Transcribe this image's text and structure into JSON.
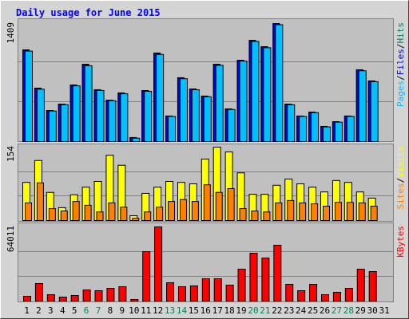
{
  "chart_data": [
    {
      "type": "bar",
      "title": "Daily usage for June 2015",
      "ylim": [
        0,
        1409
      ],
      "yticks": [
        1409
      ],
      "legend_separator": "/",
      "series": [
        {
          "name": "Hits",
          "color": "#00805c",
          "values": [
            1095,
            638,
            371,
            447,
            676,
            923,
            619,
            495,
            581,
            48,
            609,
            1057,
            305,
            762,
            628,
            543,
            923,
            390,
            971,
            1209,
            1133,
            1409,
            447,
            305,
            352,
            181,
            238,
            305,
            857,
            724,
            0
          ]
        },
        {
          "name": "Files",
          "color": "#0000ff",
          "values": [
            1095,
            638,
            371,
            447,
            676,
            923,
            619,
            495,
            581,
            48,
            609,
            1057,
            305,
            762,
            628,
            543,
            923,
            390,
            971,
            1209,
            1133,
            1409,
            447,
            305,
            352,
            181,
            238,
            305,
            857,
            724,
            0
          ]
        },
        {
          "name": "Pages",
          "color": "#00c0ff",
          "values": [
            1080,
            625,
            365,
            440,
            665,
            905,
            610,
            488,
            570,
            40,
            600,
            1040,
            300,
            750,
            618,
            535,
            910,
            383,
            960,
            1195,
            1120,
            1395,
            440,
            300,
            345,
            175,
            232,
            300,
            845,
            715,
            0
          ]
        }
      ]
    },
    {
      "type": "bar",
      "ylim": [
        0,
        154
      ],
      "yticks": [
        154
      ],
      "legend_separator": "/",
      "series": [
        {
          "name": "Visits",
          "color": "#ffff00",
          "values": [
            80,
            126,
            59,
            27,
            54,
            70,
            82,
            137,
            116,
            10,
            57,
            70,
            82,
            80,
            77,
            129,
            154,
            144,
            100,
            55,
            55,
            74,
            87,
            77,
            70,
            60,
            84,
            80,
            60,
            47,
            0
          ]
        },
        {
          "name": "Sites",
          "color": "#ff8000",
          "values": [
            37,
            79,
            25,
            20,
            40,
            32,
            18,
            37,
            28,
            5,
            18,
            28,
            40,
            44,
            40,
            75,
            59,
            67,
            25,
            20,
            18,
            37,
            42,
            37,
            35,
            30,
            38,
            38,
            37,
            30,
            0
          ]
        }
      ]
    },
    {
      "type": "bar",
      "ylim": [
        0,
        64011
      ],
      "yticks": [
        64011
      ],
      "categories": [
        "1",
        "2",
        "3",
        "4",
        "5",
        "6",
        "7",
        "8",
        "9",
        "10",
        "11",
        "12",
        "13",
        "14",
        "15",
        "16",
        "17",
        "18",
        "19",
        "20",
        "21",
        "22",
        "23",
        "24",
        "25",
        "26",
        "27",
        "28",
        "29",
        "30",
        "31"
      ],
      "category_colors": [
        "#000000",
        "#000000",
        "#000000",
        "#000000",
        "#000000",
        "#00805c",
        "#00805c",
        "#000000",
        "#000000",
        "#000000",
        "#000000",
        "#000000",
        "#00805c",
        "#00805c",
        "#000000",
        "#000000",
        "#000000",
        "#000000",
        "#000000",
        "#00805c",
        "#00805c",
        "#000000",
        "#000000",
        "#000000",
        "#000000",
        "#000000",
        "#00805c",
        "#00805c",
        "#000000",
        "#000000",
        "#000000"
      ],
      "series": [
        {
          "name": "KBytes",
          "color": "#ff0000",
          "values": [
            4130,
            15143,
            5506,
            3441,
            4818,
            9636,
            8948,
            11013,
            12389,
            1377,
            42674,
            64011,
            15831,
            12389,
            13077,
            19272,
            19272,
            13766,
            27532,
            41297,
            37168,
            48181,
            14454,
            8948,
            14454,
            5506,
            7571,
            11013,
            27532,
            25467,
            0
          ]
        }
      ]
    }
  ]
}
